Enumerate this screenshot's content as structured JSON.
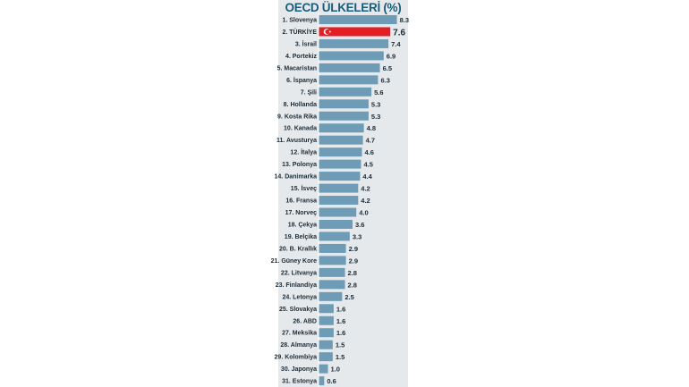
{
  "chart_data": {
    "type": "bar",
    "orientation": "horizontal",
    "title": "OECD ÜLKELERİ (%)",
    "categories": [
      "1. Slovenya",
      "2. TÜRKİYE",
      "3. İsrail",
      "4. Portekiz",
      "5. Macaristan",
      "6. İspanya",
      "7. Şili",
      "8. Hollanda",
      "9. Kosta Rika",
      "10. Kanada",
      "11. Avusturya",
      "12. İtalya",
      "13. Polonya",
      "14. Danimarka",
      "15. İsveç",
      "16. Fransa",
      "17. Norveç",
      "18. Çekya",
      "19. Belçika",
      "20. B. Krallık",
      "21. Güney Kore",
      "22. Litvanya",
      "23. Finlandiya",
      "24. Letonya",
      "25. Slovakya",
      "26. ABD",
      "27. Meksika",
      "28. Almanya",
      "29. Kolombiya",
      "30. Japonya",
      "31. Estonya"
    ],
    "values": [
      8.3,
      7.6,
      7.4,
      6.9,
      6.5,
      6.3,
      5.6,
      5.3,
      5.3,
      4.8,
      4.7,
      4.6,
      4.5,
      4.4,
      4.2,
      4.2,
      4.0,
      3.6,
      3.3,
      2.9,
      2.9,
      2.8,
      2.8,
      2.5,
      1.6,
      1.6,
      1.6,
      1.5,
      1.5,
      1.0,
      0.6
    ],
    "value_labels": [
      "8.3",
      "7.6",
      "7.4",
      "6.9",
      "6.5",
      "6.3",
      "5.6",
      "5.3",
      "5.3",
      "4.8",
      "4.7",
      "4.6",
      "4.5",
      "4.4",
      "4.2",
      "4.2",
      "4.0",
      "3.6",
      "3.3",
      "2.9",
      "2.9",
      "2.8",
      "2.8",
      "2.5",
      "1.6",
      "1.6",
      "1.6",
      "1.5",
      "1.5",
      "1.0",
      "0.6"
    ],
    "highlight_index": 1,
    "highlight_icon": "turkish-flag-crescent-star-icon",
    "colors": {
      "bar": "#6e9cb6",
      "highlight": "#e31e24",
      "title": "#1b5c7c",
      "background": "#e6e9eb"
    },
    "grid": false,
    "legend": "none"
  }
}
